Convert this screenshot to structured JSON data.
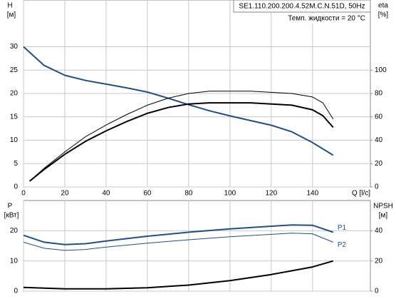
{
  "chart_data": [
    {
      "type": "line",
      "title": "SE1.110.200.200.4.52M.C.N.51D, 50Hz",
      "subtitle": "Темп. жидкости = 20 °C",
      "ylabel": "H",
      "yunit": "[м]",
      "y2label": "eta",
      "y2unit": "[%]",
      "xlabel": "Q [l/c]",
      "xlim": [
        0,
        168
      ],
      "xticks": [
        0,
        20,
        40,
        60,
        80,
        100,
        120,
        140
      ],
      "ylim": [
        0,
        40
      ],
      "yticks": [
        0,
        5,
        10,
        15,
        20,
        25,
        30
      ],
      "y2lim": [
        0,
        160
      ],
      "y2ticks": [
        0,
        20,
        40,
        60,
        80,
        100
      ],
      "grid": true,
      "series": [
        {
          "color": "#1f4e8c",
          "x": [
            0,
            10,
            20,
            30,
            40,
            50,
            60,
            70,
            80,
            90,
            100,
            110,
            120,
            130,
            140,
            150
          ],
          "values": [
            30,
            26,
            23.9,
            22.8,
            22,
            21.2,
            20.3,
            19,
            17.6,
            16.3,
            15.2,
            14.2,
            13.2,
            11.8,
            9.5,
            6.8
          ]
        },
        {
          "color": "#000000",
          "axis": "y2",
          "x": [
            3,
            10,
            20,
            30,
            40,
            50,
            60,
            70,
            80,
            90,
            100,
            110,
            120,
            130,
            140,
            145,
            150
          ],
          "values": [
            5,
            16,
            30,
            43,
            53,
            62,
            70,
            76,
            80,
            82,
            82,
            82,
            81,
            80,
            77,
            72,
            58
          ]
        },
        {
          "color": "#000000",
          "axis": "y2",
          "x": [
            3,
            10,
            20,
            30,
            40,
            50,
            60,
            70,
            80,
            90,
            100,
            110,
            120,
            130,
            140,
            145,
            150
          ],
          "values": [
            5,
            15,
            28,
            39,
            48,
            56,
            63,
            68,
            71,
            72,
            72,
            72,
            71,
            70,
            66,
            61,
            51
          ]
        }
      ]
    },
    {
      "type": "line",
      "ylabel": "P",
      "yunit": "[кВт]",
      "y2label": "NPSH",
      "y2unit": "[м]",
      "xlim": [
        0,
        168
      ],
      "ylim": [
        0,
        30
      ],
      "yticks": [
        0,
        10,
        20
      ],
      "y2lim": [
        0,
        60
      ],
      "y2ticks": [
        0,
        20,
        40
      ],
      "grid": true,
      "series": [
        {
          "name": "P1",
          "color": "#1f4e8c",
          "x": [
            0,
            10,
            20,
            30,
            40,
            60,
            80,
            100,
            120,
            130,
            140,
            150
          ],
          "values": [
            18.5,
            16.2,
            15.4,
            15.7,
            16.6,
            18.2,
            19.5,
            20.6,
            21.5,
            21.9,
            21.8,
            19.5
          ]
        },
        {
          "name": "P2",
          "color": "#1f4e8c",
          "x": [
            0,
            10,
            20,
            30,
            40,
            60,
            80,
            100,
            120,
            130,
            140,
            150
          ],
          "values": [
            16.2,
            14.2,
            13.5,
            13.8,
            14.6,
            15.9,
            17,
            18,
            18.8,
            19.2,
            19,
            16.2
          ]
        },
        {
          "color": "#000000",
          "axis": "y2",
          "x": [
            0,
            20,
            40,
            60,
            80,
            100,
            120,
            140,
            150
          ],
          "values": [
            2.5,
            1.5,
            1.5,
            2.2,
            4,
            7,
            11,
            16,
            20
          ]
        }
      ]
    }
  ]
}
